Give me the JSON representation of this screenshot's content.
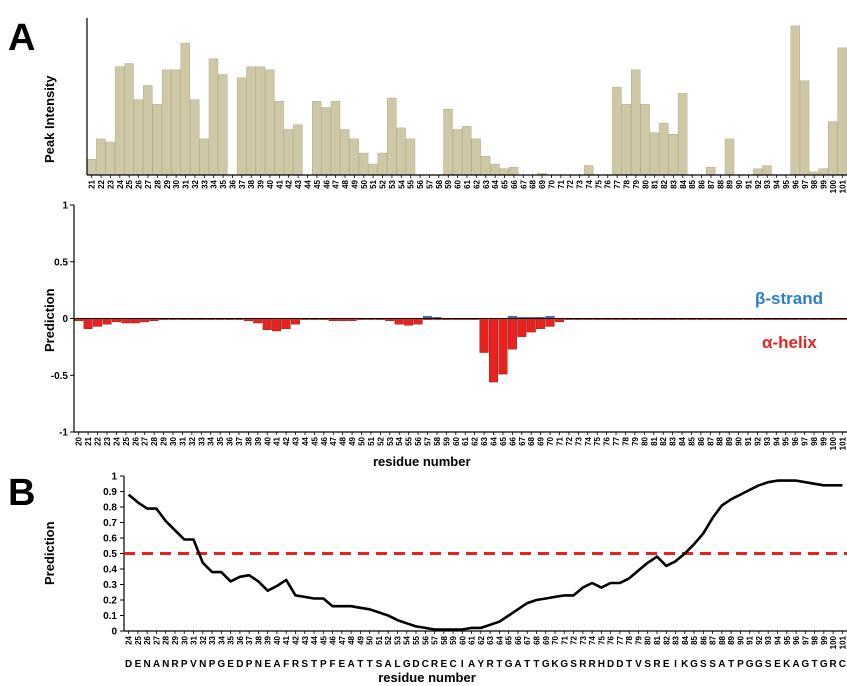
{
  "panel_labels": {
    "a": "A",
    "b": "B"
  },
  "colors": {
    "intensity": "#cfc8a6",
    "helix": "#e8231f",
    "strand": "#4a74b4",
    "helix_label": "#e8231f",
    "strand_label": "#2a7fc4",
    "threshold": "#e8231f",
    "line": "#000000"
  },
  "chart_data": [
    {
      "id": "peak-intensity",
      "type": "bar",
      "title": "",
      "xlabel": "",
      "ylabel": "Peak Intensity",
      "categories": [
        "21",
        "22",
        "23",
        "24",
        "25",
        "26",
        "27",
        "28",
        "29",
        "30",
        "31",
        "32",
        "33",
        "34",
        "35",
        "36",
        "37",
        "38",
        "39",
        "40",
        "41",
        "42",
        "43",
        "44",
        "45",
        "46",
        "47",
        "48",
        "49",
        "50",
        "51",
        "52",
        "53",
        "54",
        "55",
        "56",
        "57",
        "58",
        "59",
        "60",
        "61",
        "62",
        "63",
        "64",
        "65",
        "66",
        "67",
        "68",
        "69",
        "70",
        "71",
        "72",
        "73",
        "74",
        "75",
        "76",
        "77",
        "78",
        "79",
        "80",
        "81",
        "82",
        "83",
        "84",
        "85",
        "86",
        "87",
        "88",
        "89",
        "90",
        "91",
        "92",
        "93",
        "94",
        "95",
        "96",
        "97",
        "98",
        "99",
        "100",
        "101"
      ],
      "tick_labels": [
        "21",
        "22",
        "23",
        "24",
        "25",
        "26",
        "27",
        "28",
        "29",
        "30",
        "31",
        "32",
        "33",
        "34",
        "35",
        "36",
        "37",
        "38",
        "39",
        "40",
        "41",
        "42",
        "43",
        "44",
        "45",
        "46",
        "47",
        "48",
        "49",
        "50",
        "51",
        "52",
        "53",
        "54",
        "55",
        "56",
        "57",
        "58",
        "59",
        "60",
        "61",
        "62",
        "63",
        "64",
        "65",
        "66",
        "67",
        "68",
        "69",
        "70",
        "71",
        "72",
        "73",
        "74",
        "75",
        "76",
        "77",
        "78",
        "79",
        "80",
        "81",
        "82",
        "83",
        "84",
        "85",
        "86",
        "87",
        "88",
        "89",
        "90",
        "91",
        "92",
        "93",
        "94",
        "95",
        "96",
        "97",
        "98",
        "99",
        "100",
        "101"
      ],
      "values": [
        0.1,
        0.23,
        0.21,
        0.69,
        0.71,
        0.48,
        0.57,
        0.45,
        0.67,
        0.67,
        0.84,
        0.48,
        0.23,
        0.74,
        0.64,
        0.0,
        0.62,
        0.69,
        0.69,
        0.67,
        0.47,
        0.29,
        0.32,
        0.0,
        0.47,
        0.43,
        0.47,
        0.29,
        0.23,
        0.14,
        0.07,
        0.14,
        0.49,
        0.3,
        0.23,
        0.0,
        0.0,
        0.0,
        0.42,
        0.29,
        0.31,
        0.23,
        0.12,
        0.07,
        0.04,
        0.05,
        0.0,
        0.0,
        0.01,
        0.0,
        0.0,
        0.0,
        0.0,
        0.06,
        0.0,
        0.0,
        0.56,
        0.45,
        0.67,
        0.45,
        0.27,
        0.33,
        0.26,
        0.52,
        0.0,
        0.0,
        0.05,
        0.0,
        0.23,
        0.0,
        0.0,
        0.04,
        0.06,
        0.0,
        0.0,
        0.95,
        0.6,
        0.02,
        0.04,
        0.34,
        0.81
      ],
      "ylim": [
        0,
        1
      ]
    },
    {
      "id": "secondary-structure",
      "type": "bar",
      "title": "",
      "xlabel": "residue number",
      "ylabel": "Prediction",
      "categories": [
        "20",
        "21",
        "22",
        "23",
        "24",
        "25",
        "26",
        "27",
        "28",
        "29",
        "30",
        "31",
        "32",
        "33",
        "34",
        "35",
        "36",
        "37",
        "38",
        "39",
        "40",
        "41",
        "42",
        "43",
        "44",
        "45",
        "46",
        "47",
        "48",
        "49",
        "50",
        "51",
        "52",
        "53",
        "54",
        "55",
        "56",
        "57",
        "58",
        "59",
        "60",
        "61",
        "62",
        "63",
        "64",
        "65",
        "66",
        "67",
        "68",
        "69",
        "70",
        "71",
        "72",
        "73",
        "74",
        "75",
        "76",
        "77",
        "78",
        "79",
        "80",
        "81",
        "82",
        "83",
        "84",
        "85",
        "86",
        "87",
        "88",
        "89",
        "90",
        "91",
        "92",
        "93",
        "94",
        "95",
        "96",
        "97",
        "98",
        "99",
        "100",
        "101"
      ],
      "tick_labels": [
        "20",
        "21",
        "22",
        "23",
        "24",
        "25",
        "26",
        "27",
        "28",
        "29",
        "30",
        "31",
        "32",
        "33",
        "34",
        "35",
        "36",
        "37",
        "38",
        "39",
        "40",
        "41",
        "42",
        "43",
        "44",
        "45",
        "46",
        "47",
        "48",
        "49",
        "50",
        "51",
        "52",
        "53",
        "54",
        "55",
        "56",
        "57",
        "58",
        "59",
        "60",
        "61",
        "62",
        "63",
        "64",
        "65",
        "66",
        "67",
        "68",
        "69",
        "70",
        "71",
        "72",
        "73",
        "74",
        "75",
        "76",
        "77",
        "78",
        "79",
        "80",
        "81",
        "82",
        "83",
        "84",
        "85",
        "86",
        "87",
        "88",
        "89",
        "90",
        "91",
        "92",
        "93",
        "94",
        "95",
        "96",
        "97",
        "98",
        "99",
        "100",
        "101"
      ],
      "series": [
        {
          "name": "α-helix",
          "values": [
            -0.02,
            -0.09,
            -0.07,
            -0.05,
            -0.03,
            -0.04,
            -0.04,
            -0.03,
            -0.02,
            -0.01,
            -0.01,
            -0.01,
            -0.01,
            -0.01,
            -0.01,
            -0.01,
            -0.01,
            -0.01,
            -0.02,
            -0.04,
            -0.1,
            -0.11,
            -0.09,
            -0.05,
            -0.01,
            -0.01,
            -0.01,
            -0.02,
            -0.02,
            -0.02,
            -0.01,
            -0.01,
            -0.01,
            -0.02,
            -0.05,
            -0.06,
            -0.05,
            -0.01,
            -0.01,
            -0.01,
            -0.01,
            -0.01,
            -0.01,
            -0.3,
            -0.56,
            -0.49,
            -0.27,
            -0.16,
            -0.12,
            -0.09,
            -0.07,
            -0.03,
            -0.01,
            -0.01,
            -0.01,
            -0.01,
            -0.01,
            -0.01,
            -0.01,
            -0.01,
            -0.01,
            -0.01,
            -0.01,
            -0.01,
            -0.01,
            -0.01,
            -0.01,
            -0.01,
            -0.01,
            -0.01,
            -0.01,
            -0.01,
            -0.01,
            -0.01,
            -0.01,
            -0.01,
            -0.01,
            -0.01,
            -0.01,
            -0.01,
            -0.01,
            -0.01
          ]
        },
        {
          "name": "β-strand",
          "values": [
            0,
            0,
            0,
            0,
            0,
            0,
            0,
            0,
            0,
            0,
            0,
            0,
            0,
            0,
            0,
            0,
            0,
            0,
            0,
            0,
            0,
            0,
            0,
            0,
            0,
            0,
            0,
            0,
            0,
            0,
            0,
            0,
            0,
            0,
            0,
            0,
            0,
            0.02,
            0.01,
            0,
            0,
            0,
            0,
            0,
            0,
            0,
            0.02,
            0.01,
            0.01,
            0.01,
            0.02,
            0,
            0,
            0,
            0,
            0,
            0,
            0,
            0,
            0,
            0,
            0,
            0,
            0,
            0,
            0,
            0,
            0,
            0,
            0,
            0,
            0,
            0,
            0,
            0,
            0,
            0,
            0,
            0,
            0,
            0,
            0
          ]
        }
      ],
      "legend": [
        "β-strand",
        "α-helix"
      ],
      "yticks": [
        "1",
        "0.5",
        "0",
        "-0.5",
        "-1"
      ],
      "ylim": [
        -1,
        1
      ]
    },
    {
      "id": "disorder-prediction",
      "type": "line",
      "title": "",
      "xlabel": "residue number",
      "ylabel": "Prediction",
      "x": [
        24,
        25,
        26,
        27,
        28,
        29,
        30,
        31,
        32,
        33,
        34,
        35,
        36,
        37,
        38,
        39,
        40,
        41,
        42,
        43,
        44,
        45,
        46,
        47,
        48,
        49,
        50,
        51,
        52,
        53,
        54,
        55,
        56,
        57,
        58,
        59,
        60,
        61,
        62,
        63,
        64,
        65,
        66,
        67,
        68,
        69,
        70,
        71,
        72,
        73,
        74,
        75,
        76,
        77,
        78,
        79,
        80,
        81,
        82,
        83,
        84,
        85,
        86,
        87,
        88,
        89,
        90,
        91,
        92,
        93,
        94,
        95,
        96,
        97,
        98,
        99,
        100,
        101
      ],
      "tick_labels": [
        "24",
        "25",
        "26",
        "27",
        "28",
        "29",
        "30",
        "31",
        "32",
        "33",
        "34",
        "35",
        "36",
        "37",
        "38",
        "39",
        "40",
        "41",
        "42",
        "43",
        "44",
        "45",
        "46",
        "47",
        "48",
        "49",
        "50",
        "51",
        "52",
        "53",
        "54",
        "55",
        "56",
        "57",
        "58",
        "59",
        "60",
        "61",
        "62",
        "63",
        "64",
        "65",
        "66",
        "67",
        "68",
        "69",
        "70",
        "71",
        "72",
        "73",
        "74",
        "75",
        "76",
        "77",
        "78",
        "79",
        "80",
        "81",
        "82",
        "83",
        "84",
        "85",
        "86",
        "87",
        "88",
        "89",
        "90",
        "91",
        "92",
        "93",
        "94",
        "95",
        "96",
        "97",
        "98",
        "99",
        "100",
        "101"
      ],
      "y": [
        0.88,
        0.83,
        0.79,
        0.79,
        0.71,
        0.65,
        0.59,
        0.59,
        0.44,
        0.38,
        0.38,
        0.32,
        0.35,
        0.36,
        0.32,
        0.26,
        0.29,
        0.33,
        0.23,
        0.22,
        0.21,
        0.21,
        0.16,
        0.16,
        0.16,
        0.15,
        0.14,
        0.12,
        0.1,
        0.07,
        0.05,
        0.03,
        0.02,
        0.01,
        0.01,
        0.01,
        0.01,
        0.02,
        0.02,
        0.04,
        0.06,
        0.1,
        0.14,
        0.18,
        0.2,
        0.21,
        0.22,
        0.23,
        0.23,
        0.28,
        0.31,
        0.28,
        0.31,
        0.31,
        0.34,
        0.39,
        0.44,
        0.48,
        0.42,
        0.45,
        0.5,
        0.56,
        0.63,
        0.73,
        0.81,
        0.85,
        0.88,
        0.91,
        0.94,
        0.96,
        0.97,
        0.97,
        0.97,
        0.96,
        0.95,
        0.94,
        0.94,
        0.94
      ],
      "threshold": 0.5,
      "sequence": [
        "D",
        "E",
        "N",
        "A",
        "N",
        "R",
        "P",
        "V",
        "N",
        "P",
        "G",
        "E",
        "D",
        "P",
        "N",
        "E",
        "A",
        "F",
        "R",
        "S",
        "T",
        "P",
        "F",
        "E",
        "A",
        "T",
        "T",
        "S",
        "A",
        "L",
        "G",
        "D",
        "C",
        "R",
        "E",
        "C",
        "I",
        "A",
        "Y",
        "R",
        "T",
        "G",
        "A",
        "T",
        "T",
        "G",
        "K",
        "G",
        "S",
        "R",
        "R",
        "H",
        "D",
        "D",
        "T",
        "V",
        "S",
        "R",
        "E",
        "I",
        "K",
        "G",
        "S",
        "S",
        "A",
        "T",
        "P",
        "G",
        "G",
        "S",
        "E",
        "K",
        "A",
        "G",
        "T",
        "G",
        "R",
        "C"
      ],
      "yticks": [
        "1",
        "0.9",
        "0.8",
        "0.7",
        "0.6",
        "0.5",
        "0.4",
        "0.3",
        "0.2",
        "0.1",
        "0"
      ],
      "ylim": [
        0,
        1
      ]
    }
  ]
}
